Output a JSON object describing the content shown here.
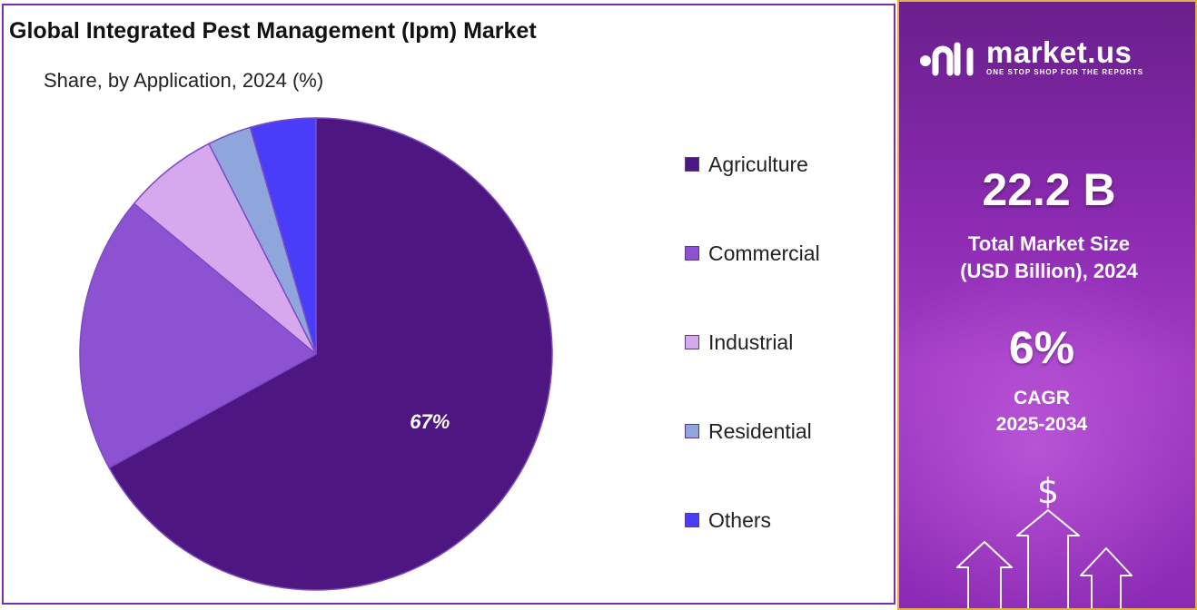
{
  "chart_data": {
    "type": "pie",
    "title": "Global Integrated Pest Management (Ipm) Market",
    "subtitle": "Share, by Application, 2024 (%)",
    "categories": [
      "Agriculture",
      "Commercial",
      "Industrial",
      "Residential",
      "Others"
    ],
    "values": [
      67,
      19,
      6.5,
      3,
      4.5
    ],
    "data_labels": [
      "67%",
      "",
      "",
      "",
      ""
    ],
    "colors": [
      "#4d1681",
      "#8c52d2",
      "#d6a8ee",
      "#8fa6dc",
      "#4a3dfa"
    ],
    "legend_position": "right"
  },
  "side_panel": {
    "brand": "market.us",
    "tagline": "ONE STOP SHOP FOR THE REPORTS",
    "market_size_value": "22.2 B",
    "market_size_label_1": "Total Market Size",
    "market_size_label_2": "(USD Billion), 2024",
    "cagr_value": "6%",
    "cagr_label_1": "CAGR",
    "cagr_label_2": "2025-2034",
    "currency_symbol": "$",
    "background_color": "#8a2ab0",
    "border_color": "#e2b04a"
  }
}
